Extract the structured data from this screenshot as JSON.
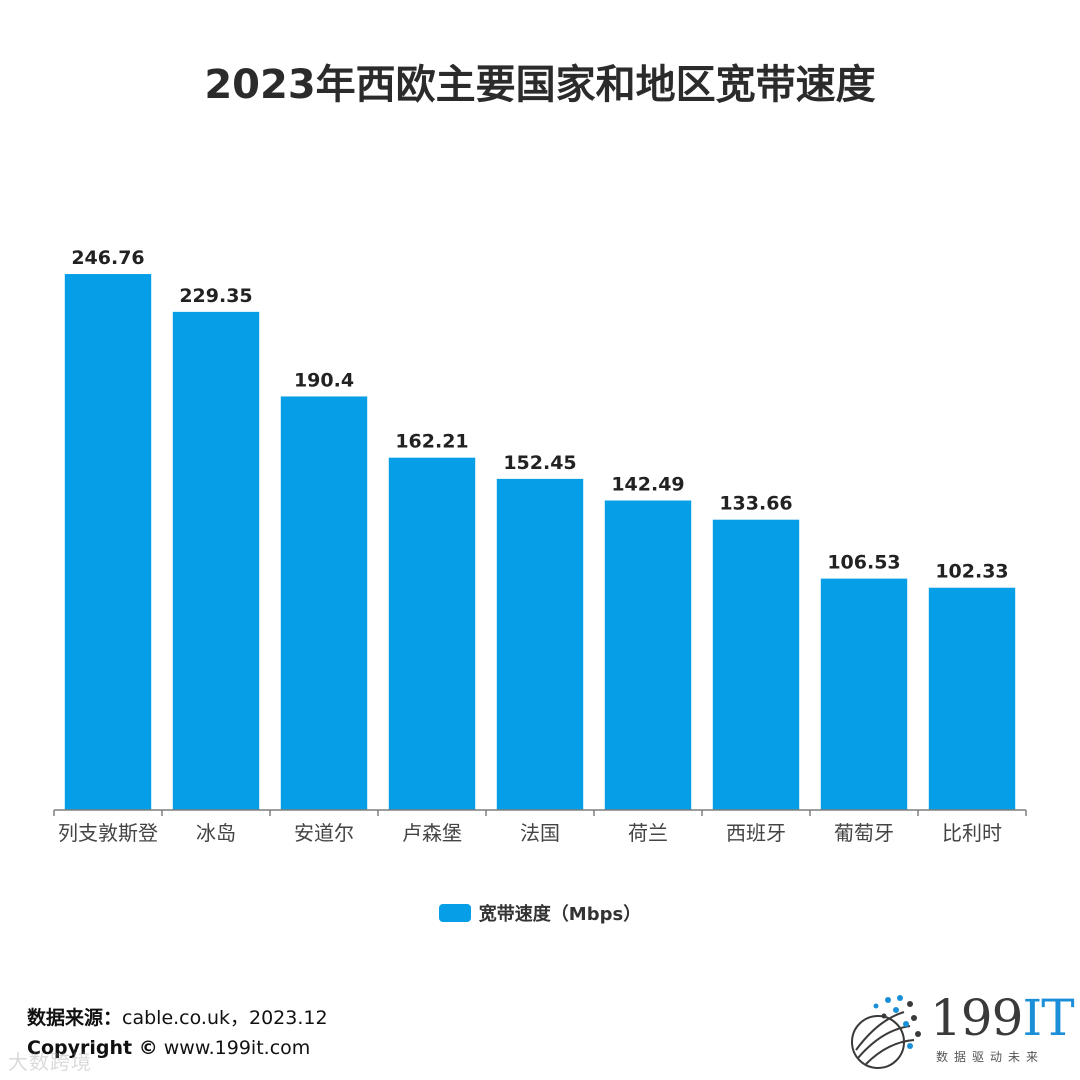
{
  "title": "2023年西欧主要国家和地区宽带速度",
  "chart_data": {
    "type": "bar",
    "categories": [
      "列支敦斯登",
      "冰岛",
      "安道尔",
      "卢森堡",
      "法国",
      "荷兰",
      "西班牙",
      "葡萄牙",
      "比利时"
    ],
    "series": [
      {
        "name": "宽带速度（Mbps）",
        "values": [
          246.76,
          229.35,
          190.4,
          162.21,
          152.45,
          142.49,
          133.66,
          106.53,
          102.33
        ]
      }
    ],
    "value_labels": [
      "246.76",
      "229.35",
      "190.4",
      "162.21",
      "152.45",
      "142.49",
      "133.66",
      "106.53",
      "102.33"
    ],
    "ylim": [
      0,
      250
    ],
    "grid": false,
    "legend_position": "bottom",
    "bar_color": "#069fe7",
    "axis_color": "#7f7f7f"
  },
  "legend": {
    "label": "宽带速度（Mbps）",
    "color": "#069fe7"
  },
  "source": {
    "label": "数据来源：",
    "text": "cable.co.uk，2023.12"
  },
  "copyright": {
    "label": "Copyright ©",
    "text": " www.199it.com"
  },
  "watermark": {
    "text": "大数跨境"
  },
  "logo": {
    "num": "199",
    "it": "IT",
    "sub": "数据驱动未来",
    "accent": "#1a8fd8"
  }
}
